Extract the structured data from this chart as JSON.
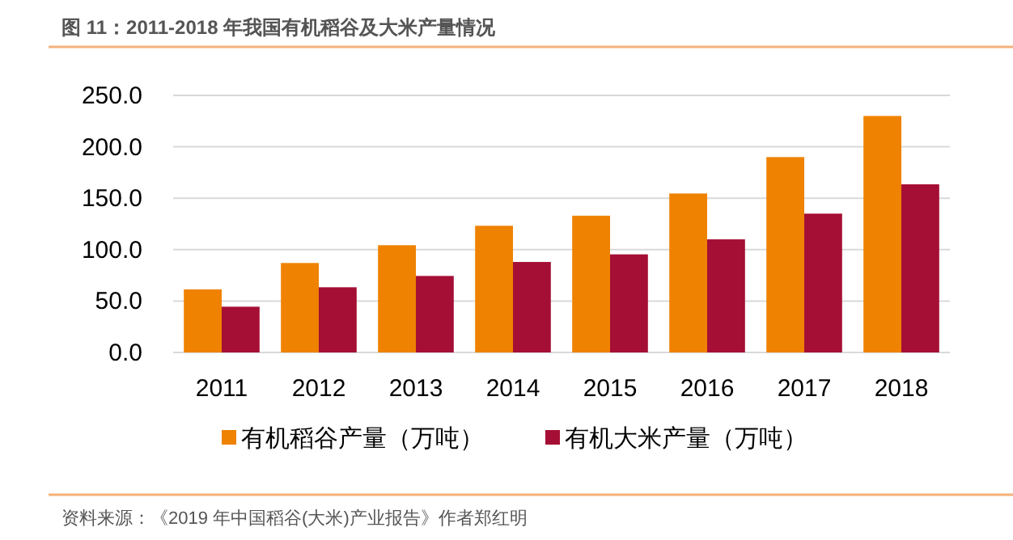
{
  "chart_data": {
    "type": "bar",
    "title": "图 11：2011-2018 年我国有机稻谷及大米产量情况",
    "categories": [
      "2011",
      "2012",
      "2013",
      "2014",
      "2015",
      "2016",
      "2017",
      "2018"
    ],
    "series": [
      {
        "name": "有机稻谷产量（万吨）",
        "color": "#ef8200",
        "values": [
          61.3,
          87,
          104.3,
          123.2,
          133,
          154.6,
          190,
          230
        ]
      },
      {
        "name": "有机大米产量（万吨）",
        "color": "#a50f35",
        "values": [
          44.5,
          63.4,
          74.4,
          88,
          95.4,
          110,
          135,
          163.5
        ]
      }
    ],
    "ylim": [
      0,
      250
    ],
    "yticks": [
      {
        "value": 0,
        "label": "0.0"
      },
      {
        "value": 50,
        "label": "50.0"
      },
      {
        "value": 100,
        "label": "100.0"
      },
      {
        "value": 150,
        "label": "150.0"
      },
      {
        "value": 200,
        "label": "200.0"
      },
      {
        "value": 250,
        "label": "250.0"
      }
    ],
    "grid": "y",
    "legend": "bottom",
    "annotations": [
      "资料来源：《2019 年中国稻谷(大米)产业报告》作者郑红明"
    ]
  }
}
